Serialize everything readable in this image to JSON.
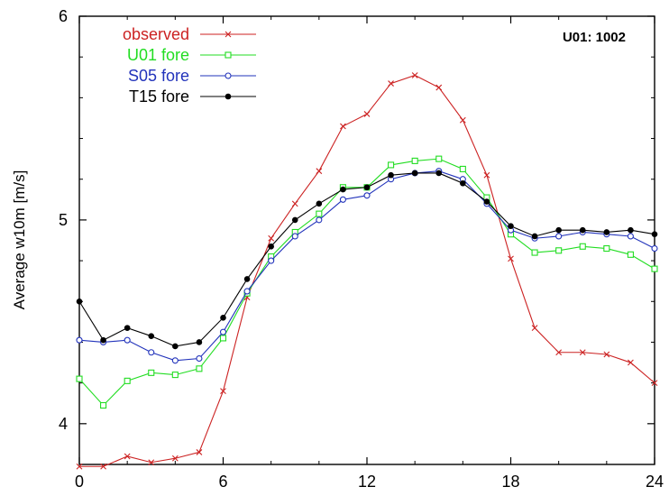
{
  "chart_data": {
    "type": "line",
    "title": "",
    "annotation": "U01: 1002",
    "xlabel": "",
    "ylabel": "Average w10m [m/s]",
    "xlim": [
      0,
      24
    ],
    "ylim": [
      3.8,
      6
    ],
    "x_ticks": [
      "0",
      "6",
      "12",
      "18",
      "24"
    ],
    "y_ticks": [
      "4",
      "5",
      "6"
    ],
    "grid": false,
    "legend_position": "top-left",
    "x": [
      0,
      1,
      2,
      3,
      4,
      5,
      6,
      7,
      8,
      9,
      10,
      11,
      12,
      13,
      14,
      15,
      16,
      17,
      18,
      19,
      20,
      21,
      22,
      23,
      24
    ],
    "series": [
      {
        "name": "observed",
        "color": "#cc2222",
        "marker": "x",
        "values": [
          3.79,
          3.79,
          3.84,
          3.81,
          3.83,
          3.86,
          4.16,
          4.62,
          4.91,
          5.08,
          5.24,
          5.46,
          5.52,
          5.67,
          5.71,
          5.65,
          5.49,
          5.22,
          4.81,
          4.47,
          4.35,
          4.35,
          4.34,
          4.3,
          4.2
        ]
      },
      {
        "name": "U01 fore",
        "color": "#22dd22",
        "marker": "square",
        "values": [
          4.22,
          4.09,
          4.21,
          4.25,
          4.24,
          4.27,
          4.42,
          4.64,
          4.82,
          4.94,
          5.03,
          5.16,
          5.16,
          5.27,
          5.29,
          5.3,
          5.25,
          5.11,
          4.93,
          4.84,
          4.85,
          4.87,
          4.86,
          4.83,
          4.76
        ]
      },
      {
        "name": "S05 fore",
        "color": "#2233bb",
        "marker": "circle",
        "values": [
          4.41,
          4.4,
          4.41,
          4.35,
          4.31,
          4.32,
          4.45,
          4.65,
          4.8,
          4.92,
          5.0,
          5.1,
          5.12,
          5.2,
          5.23,
          5.24,
          5.2,
          5.08,
          4.95,
          4.91,
          4.92,
          4.94,
          4.93,
          4.92,
          4.86
        ]
      },
      {
        "name": "T15 fore",
        "color": "#000000",
        "marker": "dot",
        "values": [
          4.6,
          4.41,
          4.47,
          4.43,
          4.38,
          4.4,
          4.52,
          4.71,
          4.87,
          5.0,
          5.08,
          5.15,
          5.16,
          5.22,
          5.23,
          5.23,
          5.18,
          5.09,
          4.97,
          4.92,
          4.95,
          4.95,
          4.94,
          4.95,
          4.93
        ]
      }
    ]
  }
}
